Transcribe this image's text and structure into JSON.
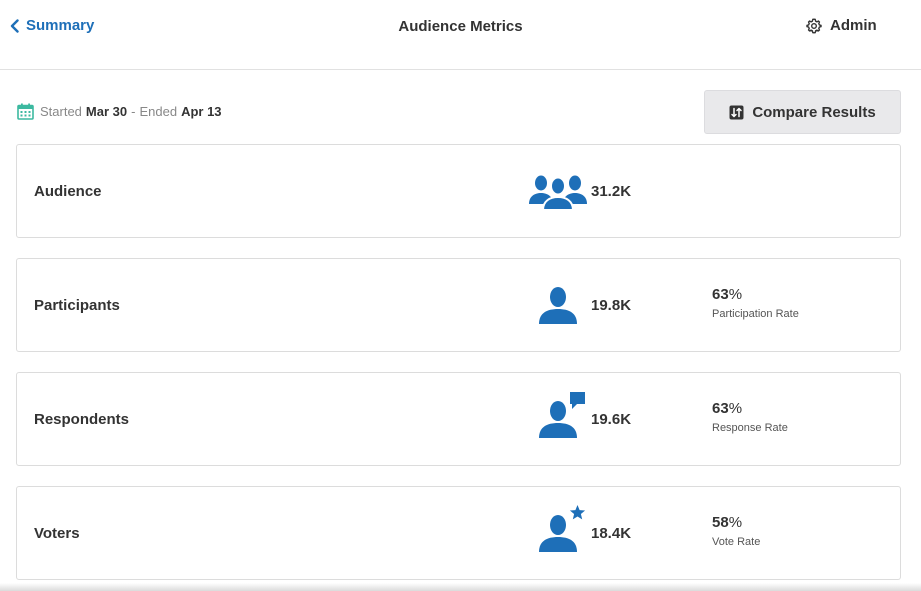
{
  "header": {
    "back_label": "Summary",
    "title": "Audience Metrics",
    "admin_label": "Admin"
  },
  "date_range": {
    "started_label": "Started",
    "start_date": "Mar 30",
    "separator": "-",
    "ended_label": "Ended",
    "end_date": "Apr 13"
  },
  "compare_button": "Compare Results",
  "metrics": [
    {
      "label": "Audience",
      "value": "31.2K",
      "icon": "group-icon"
    },
    {
      "label": "Participants",
      "value": "19.8K",
      "rate": "63",
      "rate_symbol": "%",
      "rate_label": "Participation Rate",
      "icon": "person-icon"
    },
    {
      "label": "Respondents",
      "value": "19.6K",
      "rate": "63",
      "rate_symbol": "%",
      "rate_label": "Response Rate",
      "icon": "person-comment-icon"
    },
    {
      "label": "Voters",
      "value": "18.4K",
      "rate": "58",
      "rate_symbol": "%",
      "rate_label": "Vote Rate",
      "icon": "person-star-icon"
    }
  ],
  "colors": {
    "accent": "#1e6fb8",
    "calendar": "#3cb9a0"
  }
}
